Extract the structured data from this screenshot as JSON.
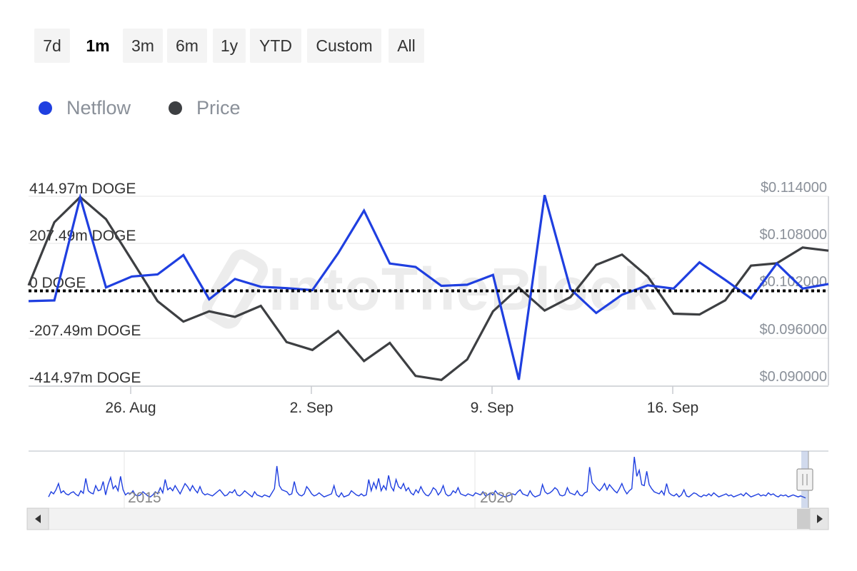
{
  "range_selector": {
    "buttons": [
      "7d",
      "1m",
      "3m",
      "6m",
      "1y",
      "YTD",
      "Custom",
      "All"
    ],
    "active": "1m"
  },
  "legend": [
    {
      "name": "Netflow",
      "color": "#1f3fe0"
    },
    {
      "name": "Price",
      "color": "#3d3f42"
    }
  ],
  "watermark": "IntoTheBlock",
  "chart_data": {
    "type": "line",
    "x_tick_labels": [
      "26. Aug",
      "2. Sep",
      "9. Sep",
      "16. Sep"
    ],
    "left_axis": {
      "tick_labels": [
        "414.97m DOGE",
        "207.49m DOGE",
        "0 DOGE",
        "-207.49m DOGE",
        "-414.97m DOGE"
      ],
      "range_m": [
        -414.97,
        414.97
      ],
      "unit": "m DOGE"
    },
    "right_axis": {
      "tick_labels": [
        "$0.114000",
        "$0.108000",
        "$0.102000",
        "$0.096000",
        "$0.090000"
      ],
      "range": [
        0.09,
        0.114
      ],
      "unit": "$"
    },
    "zero_line": "dotted",
    "series": [
      {
        "name": "Netflow",
        "axis": "left",
        "color": "#1f3fe0",
        "values": [
          -45,
          -42,
          410,
          15,
          63,
          72,
          157,
          -37,
          52,
          18,
          12,
          3,
          165,
          352,
          120,
          105,
          22,
          27,
          70,
          -390,
          420,
          8,
          -97,
          -17,
          24,
          10,
          125,
          48,
          -33,
          120,
          10,
          30
        ]
      },
      {
        "name": "Price",
        "axis": "right",
        "color": "#3d3f42",
        "values": [
          0.1027,
          0.1107,
          0.1139,
          0.1111,
          0.1059,
          0.1007,
          0.0981,
          0.0994,
          0.0987,
          0.1001,
          0.0955,
          0.0945,
          0.0969,
          0.0931,
          0.0954,
          0.0912,
          0.0907,
          0.0933,
          0.0994,
          0.1024,
          0.0995,
          0.1012,
          0.1053,
          0.1066,
          0.1038,
          0.0991,
          0.099,
          0.1008,
          0.1052,
          0.1055,
          0.1075,
          0.1071
        ]
      }
    ],
    "navigator": {
      "labels": [
        "2015",
        "2020"
      ],
      "series_name": "Netflow",
      "values": [
        0.08,
        0.18,
        0.14,
        0.22,
        0.34,
        0.16,
        0.2,
        0.14,
        0.12,
        0.16,
        0.18,
        0.13,
        0.1,
        0.2,
        0.15,
        0.44,
        0.2,
        0.16,
        0.14,
        0.3,
        0.2,
        0.22,
        0.38,
        0.12,
        0.32,
        0.46,
        0.24,
        0.3,
        0.2,
        0.48,
        0.22,
        0.12,
        0.16,
        0.14,
        0.2,
        0.12,
        0.1,
        0.12,
        0.18,
        0.14,
        0.1,
        0.08,
        0.12,
        0.18,
        0.14,
        0.26,
        0.16,
        0.42,
        0.22,
        0.26,
        0.2,
        0.3,
        0.22,
        0.14,
        0.24,
        0.34,
        0.28,
        0.2,
        0.3,
        0.22,
        0.16,
        0.28,
        0.16,
        0.12,
        0.14,
        0.12,
        0.1,
        0.14,
        0.18,
        0.22,
        0.16,
        0.1,
        0.12,
        0.18,
        0.16,
        0.22,
        0.12,
        0.1,
        0.14,
        0.2,
        0.16,
        0.12,
        0.08,
        0.18,
        0.12,
        0.1,
        0.08,
        0.12,
        0.1,
        0.08,
        0.16,
        0.24,
        0.68,
        0.3,
        0.22,
        0.2,
        0.18,
        0.12,
        0.14,
        0.38,
        0.18,
        0.12,
        0.1,
        0.14,
        0.28,
        0.22,
        0.14,
        0.1,
        0.12,
        0.16,
        0.12,
        0.08,
        0.1,
        0.12,
        0.14,
        0.3,
        0.12,
        0.08,
        0.16,
        0.08,
        0.1,
        0.12,
        0.2,
        0.16,
        0.12,
        0.1,
        0.14,
        0.1,
        0.12,
        0.42,
        0.2,
        0.36,
        0.24,
        0.44,
        0.2,
        0.3,
        0.22,
        0.5,
        0.28,
        0.2,
        0.42,
        0.28,
        0.24,
        0.34,
        0.2,
        0.26,
        0.16,
        0.12,
        0.22,
        0.16,
        0.28,
        0.18,
        0.12,
        0.1,
        0.16,
        0.26,
        0.22,
        0.12,
        0.18,
        0.3,
        0.14,
        0.1,
        0.12,
        0.2,
        0.16,
        0.26,
        0.14,
        0.12,
        0.1,
        0.14,
        0.12,
        0.1,
        0.16,
        0.14,
        0.12,
        0.18,
        0.1,
        0.12,
        0.16,
        0.12,
        0.2,
        0.14,
        0.12,
        0.1,
        0.08,
        0.1,
        0.12,
        0.14,
        0.12,
        0.18,
        0.22,
        0.14,
        0.12,
        0.1,
        0.2,
        0.12,
        0.08,
        0.1,
        0.12,
        0.32,
        0.18,
        0.14,
        0.16,
        0.2,
        0.26,
        0.22,
        0.12,
        0.1,
        0.12,
        0.26,
        0.16,
        0.14,
        0.12,
        0.2,
        0.12,
        0.1,
        0.16,
        0.18,
        0.66,
        0.36,
        0.3,
        0.24,
        0.2,
        0.26,
        0.34,
        0.22,
        0.32,
        0.26,
        0.2,
        0.16,
        0.24,
        0.34,
        0.22,
        0.14,
        0.2,
        0.24,
        0.86,
        0.48,
        0.6,
        0.32,
        0.3,
        0.58,
        0.32,
        0.24,
        0.18,
        0.16,
        0.14,
        0.2,
        0.12,
        0.34,
        0.16,
        0.12,
        0.1,
        0.14,
        0.08,
        0.12,
        0.22,
        0.1,
        0.08,
        0.12,
        0.16,
        0.14,
        0.1,
        0.08,
        0.12,
        0.1,
        0.14,
        0.1,
        0.16,
        0.12,
        0.08,
        0.1,
        0.12,
        0.14,
        0.1,
        0.12,
        0.08,
        0.1,
        0.12,
        0.14,
        0.1,
        0.16,
        0.12,
        0.08,
        0.1,
        0.12,
        0.14,
        0.1,
        0.12,
        0.1,
        0.16,
        0.12,
        0.14,
        0.1,
        0.08,
        0.12,
        0.1,
        0.12,
        0.08,
        0.1,
        0.12,
        0.1,
        0.08,
        0.1,
        0.08,
        0.06
      ]
    }
  }
}
